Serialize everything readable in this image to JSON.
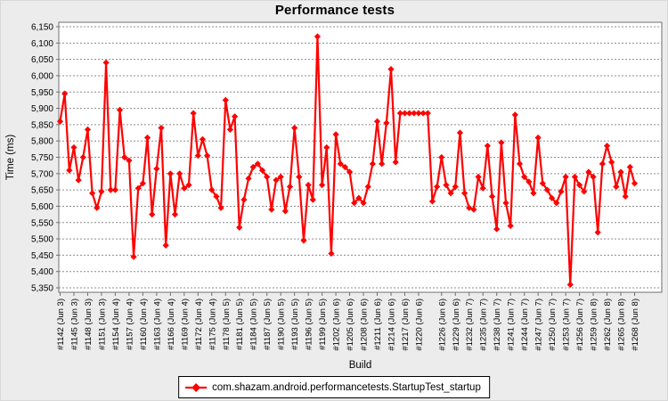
{
  "title": "Performance tests",
  "legend": {
    "label": "com.shazam.android.performancetests.StartupTest_startup"
  },
  "colors": {
    "series": "#ff0000",
    "background": "#ececec",
    "plot_background": "#ffffff",
    "gridline": "#8c8c8c",
    "plot_border": "#707070",
    "text": "#000000"
  },
  "chart_data": {
    "type": "line",
    "title": "Performance tests",
    "xlabel": "Build",
    "ylabel": "Time (ms)",
    "ylim": [
      5350,
      6150
    ],
    "y_tick_step": 50,
    "grid": true,
    "legend_position": "bottom",
    "series_name": "com.shazam.android.performancetests.StartupTest_startup",
    "marker": "diamond",
    "x_tick_labels": [
      "#1142 (Jun 3)",
      "#1145 (Jun 3)",
      "#1148 (Jun 3)",
      "#1151 (Jun 3)",
      "#1154 (Jun 4)",
      "#1157 (Jun 4)",
      "#1160 (Jun 4)",
      "#1163 (Jun 4)",
      "#1166 (Jun 4)",
      "#1169 (Jun 4)",
      "#1172 (Jun 4)",
      "#1175 (Jun 4)",
      "#1178 (Jun 5)",
      "#1181 (Jun 5)",
      "#1184 (Jun 5)",
      "#1187 (Jun 5)",
      "#1190 (Jun 5)",
      "#1193 (Jun 5)",
      "#1196 (Jun 5)",
      "#1199 (Jun 5)",
      "#1202 (Jun 6)",
      "#1205 (Jun 6)",
      "#1208 (Jun 6)",
      "#1211 (Jun 6)",
      "#1214 (Jun 6)",
      "#1217 (Jun 6)",
      "#1220 (Jun 6)",
      "#1226 (Jun 6)",
      "#1229 (Jun 6)",
      "#1232 (Jun 7)",
      "#1235 (Jun 7)",
      "#1238 (Jun 7)",
      "#1241 (Jun 7)",
      "#1244 (Jun 7)",
      "#1247 (Jun 7)",
      "#1250 (Jun 7)",
      "#1253 (Jun 7)",
      "#1256 (Jun 7)",
      "#1259 (Jun 8)",
      "#1262 (Jun 8)",
      "#1265 (Jun 8)",
      "#1268 (Jun 8)"
    ],
    "builds": [
      1142,
      1143,
      1144,
      1145,
      1146,
      1147,
      1148,
      1149,
      1150,
      1151,
      1152,
      1153,
      1154,
      1155,
      1156,
      1157,
      1158,
      1159,
      1160,
      1161,
      1162,
      1163,
      1164,
      1165,
      1166,
      1167,
      1168,
      1169,
      1170,
      1171,
      1172,
      1173,
      1174,
      1175,
      1176,
      1177,
      1178,
      1179,
      1180,
      1181,
      1182,
      1183,
      1184,
      1185,
      1186,
      1187,
      1188,
      1189,
      1190,
      1191,
      1192,
      1193,
      1194,
      1195,
      1196,
      1197,
      1198,
      1199,
      1200,
      1201,
      1202,
      1203,
      1204,
      1205,
      1206,
      1207,
      1208,
      1209,
      1210,
      1211,
      1212,
      1213,
      1214,
      1215,
      1216,
      1217,
      1218,
      1219,
      1220,
      1221,
      1222,
      1224,
      1225,
      1226,
      1227,
      1228,
      1229,
      1230,
      1231,
      1232,
      1233,
      1234,
      1235,
      1236,
      1237,
      1238,
      1239,
      1240,
      1241,
      1242,
      1243,
      1244,
      1245,
      1246,
      1247,
      1248,
      1249,
      1250,
      1251,
      1252,
      1253,
      1254,
      1255,
      1256,
      1257,
      1258,
      1259,
      1260,
      1261,
      1262,
      1263,
      1264,
      1265,
      1266,
      1267,
      1268
    ],
    "values": [
      5860,
      5945,
      5710,
      5780,
      5680,
      5750,
      5835,
      5640,
      5595,
      5645,
      6040,
      5650,
      5650,
      5895,
      5750,
      5740,
      5445,
      5655,
      5670,
      5810,
      5575,
      5715,
      5840,
      5480,
      5700,
      5575,
      5700,
      5655,
      5665,
      5885,
      5755,
      5805,
      5755,
      5650,
      5630,
      5595,
      5925,
      5835,
      5875,
      5535,
      5620,
      5685,
      5720,
      5730,
      5710,
      5690,
      5590,
      5680,
      5690,
      5585,
      5660,
      5840,
      5690,
      5495,
      5665,
      5620,
      6120,
      5665,
      5780,
      5455,
      5820,
      5730,
      5720,
      5705,
      5610,
      5625,
      5610,
      5660,
      5730,
      5860,
      5730,
      5855,
      6020,
      5735,
      5885,
      5885,
      5885,
      5885,
      5885,
      5885,
      5885,
      5615,
      5660,
      5750,
      5665,
      5640,
      5660,
      5825,
      5640,
      5595,
      5590,
      5690,
      5655,
      5785,
      5630,
      5530,
      5795,
      5610,
      5540,
      5880,
      5730,
      5690,
      5675,
      5640,
      5810,
      5670,
      5650,
      5625,
      5610,
      5645,
      5690,
      5360,
      5690,
      5665,
      5645,
      5705,
      5690,
      5520,
      5730,
      5785,
      5735,
      5660,
      5705,
      5630,
      5720,
      5670
    ]
  }
}
